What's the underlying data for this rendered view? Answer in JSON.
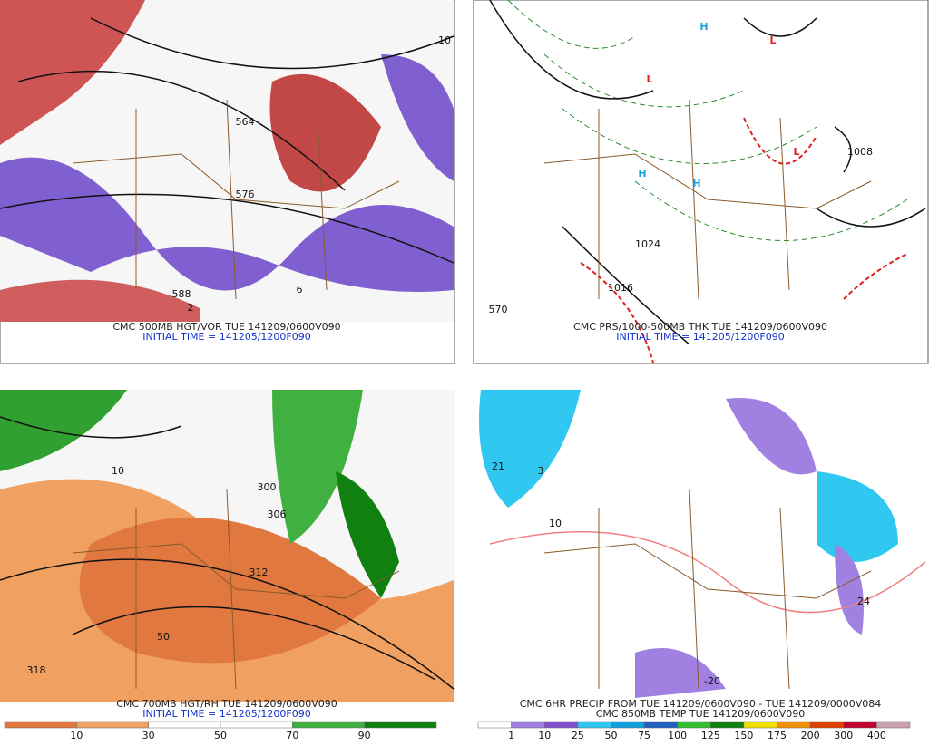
{
  "panels": [
    {
      "caption": [
        "CMC 500MB HGT/VOR TUE 141209/0600V090",
        "INITIAL TIME = 141205/1200F090"
      ],
      "labels": [
        "564",
        "576",
        "588",
        "10",
        "6",
        "2"
      ]
    },
    {
      "caption": [
        "CMC PRS/1000-500MB THK TUE 141209/0600V090",
        "INITIAL TIME = 141205/1200F090"
      ],
      "labels": [
        "L",
        "L",
        "L",
        "H",
        "H",
        "H",
        "1024",
        "1016",
        "1008",
        "570"
      ]
    },
    {
      "caption": [
        "CMC 700MB HGT/RH TUE 141209/0600V090",
        "INITIAL TIME = 141205/1200F090"
      ],
      "labels": [
        "306",
        "312",
        "318",
        "300",
        "50",
        "10"
      ],
      "legend": {
        "colors": [
          "#e07840",
          "#f0a060",
          "#ffffff",
          "#ffffff",
          "#40b040",
          "#108010"
        ],
        "ticks": [
          10,
          30,
          50,
          70,
          90
        ]
      }
    },
    {
      "caption": [
        "CMC 6HR PRECIP FROM TUE 141209/0600V090 - TUE 141209/0000V084",
        "CMC 850MB TEMP TUE 141209/0600V090"
      ],
      "labels": [
        "10",
        "24",
        "-20",
        "21",
        "3"
      ],
      "legend": {
        "colors": [
          "#ffffff",
          "#a080e0",
          "#8050d0",
          "#30c8f0",
          "#10a0e0",
          "#2060c0",
          "#30c030",
          "#108010",
          "#f0e000",
          "#f09000",
          "#e04000",
          "#c00030",
          "#c8a0b0"
        ],
        "ticks": [
          1,
          10,
          25,
          50,
          75,
          100,
          125,
          150,
          175,
          200,
          300,
          400
        ]
      }
    }
  ]
}
